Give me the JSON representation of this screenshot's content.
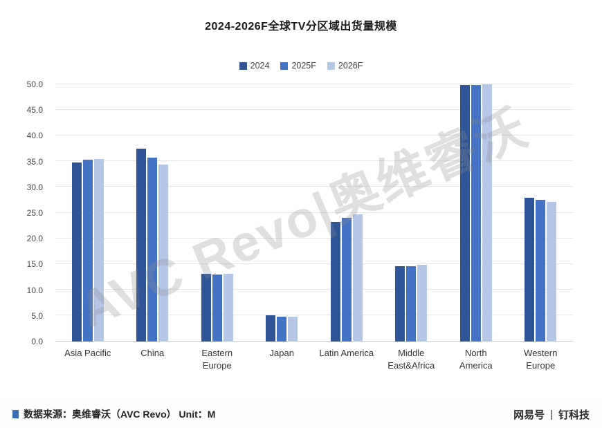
{
  "page": {
    "title": "2024-2026F全球TV分区域出货量规模",
    "watermark": "AVC Revo|奥维睿沃",
    "footer_source": "数据来源：奥维睿沃（AVC Revo）  Unit：M",
    "brand_left": "网易号",
    "brand_divider": "|",
    "brand_right": "钉科技"
  },
  "chart_data": {
    "type": "bar",
    "title": "2024-2026F全球TV分区域出货量规模",
    "categories": [
      "Asia Pacific",
      "China",
      "Eastern Europe",
      "Japan",
      "Latin America",
      "Middle East&Africa",
      "North America",
      "Western Europe"
    ],
    "series": [
      {
        "name": "2024",
        "color": "#2f5597",
        "values": [
          34.8,
          37.5,
          13.2,
          5.1,
          23.3,
          14.6,
          49.9,
          28.0
        ]
      },
      {
        "name": "2025F",
        "color": "#4472c4",
        "values": [
          35.3,
          35.7,
          13.0,
          4.9,
          24.0,
          14.7,
          49.9,
          27.6
        ]
      },
      {
        "name": "2026F",
        "color": "#b4c7e7",
        "values": [
          35.5,
          34.4,
          13.2,
          4.9,
          24.7,
          14.9,
          50.0,
          27.2
        ]
      }
    ],
    "ylim": [
      0,
      50
    ],
    "ytick_step": 5,
    "ytick_decimals": 1,
    "grid": true,
    "legend_position": "top",
    "unit": "M"
  }
}
